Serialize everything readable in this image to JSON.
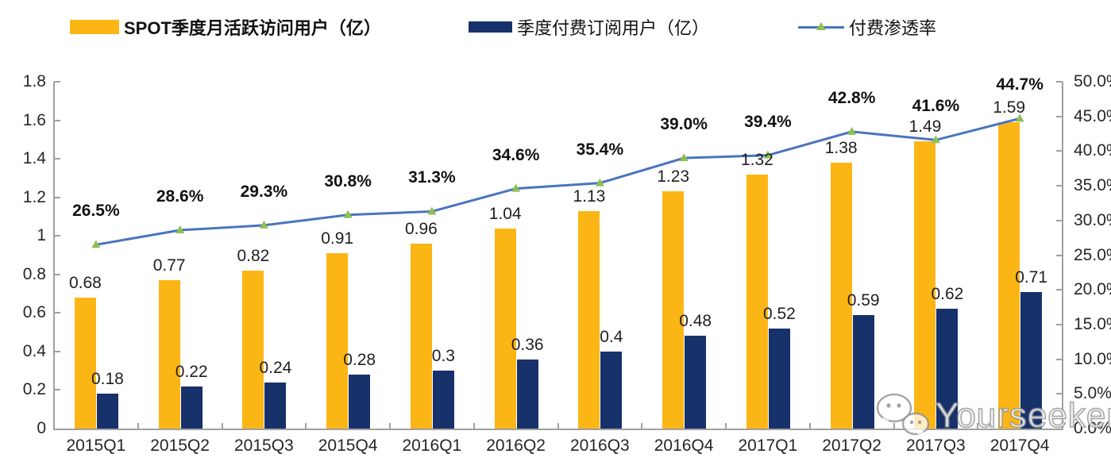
{
  "legend": [
    {
      "label": "SPOT季度月活跃访问用户（亿）",
      "type": "bar",
      "color": "#fbb616"
    },
    {
      "label": "季度付费订阅用户（亿）",
      "type": "bar",
      "color": "#17316b"
    },
    {
      "label": "付费渗透率",
      "type": "line",
      "color": "#4a74be",
      "marker_color": "#8fbf54"
    }
  ],
  "chart_data": {
    "type": "bar",
    "subtype": "bar+line combo, dual axis",
    "categories": [
      "2015Q1",
      "2015Q2",
      "2015Q3",
      "2015Q4",
      "2016Q1",
      "2016Q2",
      "2016Q3",
      "2016Q4",
      "2017Q1",
      "2017Q2",
      "2017Q3",
      "2017Q4"
    ],
    "series": [
      {
        "name": "SPOT季度月活跃访问用户（亿）",
        "type": "bar",
        "axis": "left",
        "color": "#fbb616",
        "values": [
          0.68,
          0.77,
          0.82,
          0.91,
          0.96,
          1.04,
          1.13,
          1.23,
          1.32,
          1.38,
          1.49,
          1.59
        ],
        "labels": [
          "0.68",
          "0.77",
          "0.82",
          "0.91",
          "0.96",
          "1.04",
          "1.13",
          "1.23",
          "1.32",
          "1.38",
          "1.49",
          "1.59"
        ]
      },
      {
        "name": "季度付费订阅用户（亿）",
        "type": "bar",
        "axis": "left",
        "color": "#17316b",
        "values": [
          0.18,
          0.22,
          0.24,
          0.28,
          0.3,
          0.36,
          0.4,
          0.48,
          0.52,
          0.59,
          0.62,
          0.71
        ],
        "labels": [
          "0.18",
          "0.22",
          "0.24",
          "0.28",
          "0.3",
          "0.36",
          "0.4",
          "0.48",
          "0.52",
          "0.59",
          "0.62",
          "0.71"
        ]
      },
      {
        "name": "付费渗透率",
        "type": "line",
        "axis": "right",
        "color": "#4a74be",
        "marker": "triangle",
        "marker_color": "#8fbf54",
        "values": [
          26.5,
          28.6,
          29.3,
          30.8,
          31.3,
          34.6,
          35.4,
          39.0,
          39.4,
          42.8,
          41.6,
          44.7
        ],
        "labels": [
          "26.5%",
          "28.6%",
          "29.3%",
          "30.8%",
          "31.3%",
          "34.6%",
          "35.4%",
          "39.0%",
          "39.4%",
          "42.8%",
          "41.6%",
          "44.7%"
        ]
      }
    ],
    "left_axis": {
      "min": 0,
      "max": 1.8,
      "step": 0.2,
      "ticks": [
        "0",
        "0.2",
        "0.4",
        "0.6",
        "0.8",
        "1",
        "1.2",
        "1.4",
        "1.6",
        "1.8"
      ]
    },
    "right_axis": {
      "min": 0,
      "max": 50,
      "step": 5,
      "ticks": [
        "0.0%",
        "5.0%",
        "10.0%",
        "15.0%",
        "20.0%",
        "25.0%",
        "30.0%",
        "35.0%",
        "40.0%",
        "45.0%",
        "50.0%"
      ]
    },
    "grid": false,
    "legend_position": "top",
    "title": ""
  },
  "watermark": {
    "text": "Yourseeker",
    "icon": "wechat-icon"
  }
}
